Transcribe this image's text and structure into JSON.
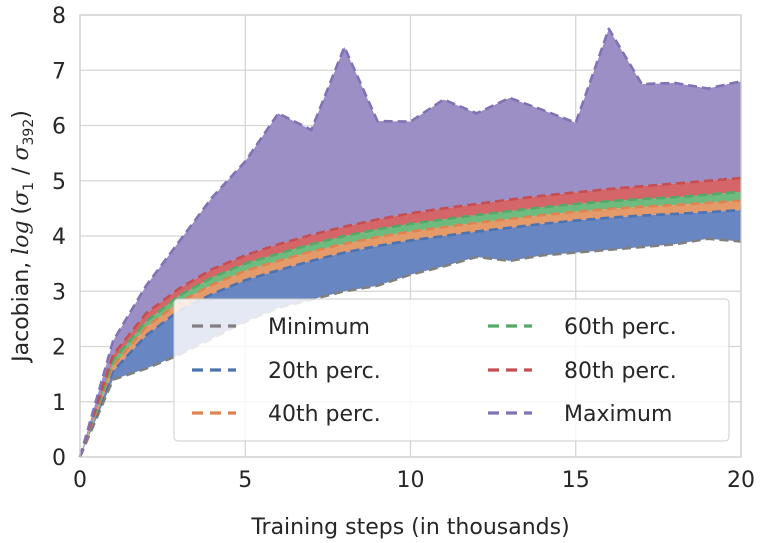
{
  "chart_data": {
    "type": "area",
    "xlabel": "Training steps (in thousands)",
    "ylabel": "Jacobian, log (σ1 / σ392)",
    "ylabel_parts": {
      "prefix": "Jacobian, ",
      "log": "log",
      "open": "(",
      "s1": "σ",
      "sub1": "1",
      "slash": " / ",
      "s2": "σ",
      "sub2": "392",
      "close": ")"
    },
    "xlim": [
      0,
      20
    ],
    "ylim": [
      0,
      8
    ],
    "xticks": [
      0,
      5,
      10,
      15,
      20
    ],
    "yticks": [
      0,
      1,
      2,
      3,
      4,
      5,
      6,
      7,
      8
    ],
    "grid": true,
    "legend_position": "lower-right",
    "x": [
      0,
      1,
      2,
      3,
      4,
      5,
      6,
      7,
      8,
      9,
      10,
      11,
      12,
      13,
      14,
      15,
      16,
      17,
      18,
      19,
      20
    ],
    "series": [
      {
        "name": "Minimum",
        "line_color": "#808080",
        "fill_color": null,
        "values": [
          0,
          1.4,
          1.6,
          1.85,
          2.15,
          2.45,
          2.7,
          2.85,
          3.0,
          3.1,
          3.3,
          3.45,
          3.62,
          3.55,
          3.65,
          3.7,
          3.75,
          3.8,
          3.85,
          3.95,
          3.9
        ]
      },
      {
        "name": "20th perc.",
        "line_color": "#4c72b0",
        "fill_color": "#6886c1",
        "values": [
          0,
          1.55,
          2.2,
          2.65,
          2.95,
          3.2,
          3.38,
          3.55,
          3.7,
          3.82,
          3.92,
          4.0,
          4.08,
          4.15,
          4.22,
          4.28,
          4.33,
          4.37,
          4.4,
          4.43,
          4.47
        ]
      },
      {
        "name": "40th perc.",
        "line_color": "#dd8452",
        "fill_color": "#e59a6a",
        "values": [
          0,
          1.65,
          2.35,
          2.8,
          3.12,
          3.37,
          3.55,
          3.72,
          3.86,
          3.98,
          4.08,
          4.16,
          4.24,
          4.31,
          4.38,
          4.44,
          4.49,
          4.53,
          4.56,
          4.6,
          4.64
        ]
      },
      {
        "name": "60th perc.",
        "line_color": "#55a868",
        "fill_color": "#6dbb7f",
        "values": [
          0,
          1.75,
          2.45,
          2.92,
          3.25,
          3.5,
          3.68,
          3.85,
          4.0,
          4.12,
          4.22,
          4.3,
          4.38,
          4.45,
          4.52,
          4.58,
          4.63,
          4.67,
          4.7,
          4.75,
          4.8
        ]
      },
      {
        "name": "80th perc.",
        "line_color": "#c44e52",
        "fill_color": "#d46669",
        "values": [
          0,
          1.85,
          2.6,
          3.05,
          3.4,
          3.65,
          3.85,
          4.02,
          4.17,
          4.3,
          4.41,
          4.5,
          4.58,
          4.66,
          4.73,
          4.79,
          4.85,
          4.9,
          4.95,
          5.0,
          5.05
        ]
      },
      {
        "name": "Maximum",
        "line_color": "#8172b3",
        "fill_color": "#9b8fc6",
        "values": [
          0,
          2.1,
          3.1,
          3.9,
          4.7,
          5.35,
          6.22,
          5.92,
          7.42,
          6.08,
          6.07,
          6.47,
          6.22,
          6.5,
          6.28,
          6.05,
          7.75,
          6.75,
          6.77,
          6.67,
          6.8
        ]
      }
    ]
  }
}
